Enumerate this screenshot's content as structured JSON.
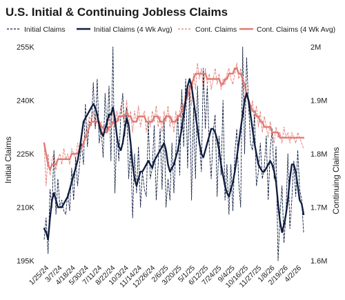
{
  "chart_data": {
    "type": "line",
    "title": "U.S. Initial & Continuing Jobless Claims",
    "ylabel": "Initial Claims",
    "y2label": "Continuing Claims",
    "ylim": [
      195,
      255
    ],
    "y2lim": [
      1.6,
      2.0
    ],
    "yticks": [
      "195K",
      "210K",
      "225K",
      "240K",
      "255K"
    ],
    "y2ticks": [
      "1.6M",
      "1.7M",
      "1.8M",
      "1.9M",
      "2M"
    ],
    "xticks": [
      "1/25/24",
      "3/7/24",
      "4/18/24",
      "5/30/24",
      "7/11/24",
      "8/22/24",
      "10/3/24",
      "11/14/24",
      "12/26/24",
      "2/6/25",
      "3/20/25",
      "5/1/25",
      "6/12/25",
      "7/24/25",
      "9/4/25",
      "10/16/25",
      "11/27/25",
      "1/8/26",
      "2/19/26",
      "4/2/26"
    ],
    "legend": [
      "Initial Claims",
      "Initial Claims (4 Wk Avg)",
      "Cont. Claims",
      "Cont. Claims (4 Wk Avg)"
    ],
    "legend_position": "top",
    "grid": false,
    "colors": {
      "initial": "#0f1d3f",
      "initial_avg": "#0f1d3f",
      "cont": "#e07a73",
      "cont_avg": "#e07a73"
    },
    "series": [
      {
        "name": "Initial Claims",
        "axis": "left",
        "values": [
          201,
          207,
          197,
          215,
          210,
          226,
          208,
          218,
          210,
          212,
          209,
          208,
          214,
          209,
          221,
          212,
          224,
          216,
          222,
          228,
          222,
          239,
          227,
          234,
          233,
          245,
          232,
          246,
          228,
          232,
          224,
          242,
          231,
          244,
          223,
          255,
          214,
          231,
          223,
          236,
          242,
          230,
          238,
          218,
          227,
          207,
          225,
          214,
          227,
          210,
          220,
          215,
          213,
          234,
          218,
          221,
          233,
          212,
          222,
          232,
          215,
          235,
          210,
          218,
          212,
          228,
          214,
          226,
          236,
          219,
          243,
          227,
          246,
          221,
          244,
          212,
          238,
          218,
          244,
          228,
          220,
          249,
          232,
          244,
          227,
          218,
          231,
          236,
          213,
          230,
          219,
          240,
          212,
          222,
          208,
          222,
          209,
          225,
          232,
          217,
          210,
          255,
          225,
          252,
          239,
          228,
          226,
          236,
          216,
          220,
          228,
          218,
          221,
          230,
          212,
          226,
          232,
          218,
          227,
          195,
          208,
          216,
          200,
          208,
          225,
          204,
          212,
          223,
          213,
          226,
          215,
          212,
          203
        ]
      },
      {
        "name": "Initial Claims (4 Wk Avg)",
        "axis": "left",
        "values": [
          204,
          203,
          201,
          207,
          212,
          214,
          212,
          210,
          210,
          210,
          211,
          212,
          213,
          215,
          217,
          219,
          221,
          223,
          226,
          230,
          234,
          235,
          236,
          237,
          238,
          239,
          238,
          236,
          233,
          231,
          230,
          232,
          234,
          236,
          236,
          238,
          235,
          230,
          227,
          226,
          228,
          232,
          235,
          233,
          228,
          222,
          218,
          216,
          218,
          220,
          220,
          221,
          222,
          223,
          222,
          221,
          223,
          224,
          225,
          226,
          227,
          228,
          226,
          222,
          220,
          221,
          222,
          224,
          226,
          229,
          232,
          236,
          240,
          244,
          246,
          244,
          240,
          236,
          232,
          228,
          225,
          224,
          226,
          228,
          230,
          232,
          232,
          231,
          229,
          226,
          222,
          219,
          216,
          214,
          213,
          215,
          217,
          220,
          224,
          228,
          232,
          236,
          240,
          242,
          240,
          236,
          232,
          228,
          225,
          222,
          221,
          220,
          220,
          221,
          222,
          223,
          222,
          220,
          217,
          211,
          206,
          203,
          205,
          208,
          212,
          218,
          222,
          222,
          220,
          216,
          212,
          211,
          208
        ]
      },
      {
        "name": "Cont. Claims",
        "axis": "right",
        "values": [
          1.82,
          1.74,
          1.8,
          1.76,
          1.79,
          1.8,
          1.77,
          1.79,
          1.8,
          1.78,
          1.81,
          1.79,
          1.8,
          1.78,
          1.81,
          1.8,
          1.79,
          1.82,
          1.81,
          1.83,
          1.82,
          1.84,
          1.85,
          1.87,
          1.86,
          1.88,
          1.85,
          1.87,
          1.84,
          1.86,
          1.83,
          1.85,
          1.84,
          1.87,
          1.86,
          1.88,
          1.85,
          1.88,
          1.86,
          1.89,
          1.87,
          1.86,
          1.9,
          1.85,
          1.88,
          1.84,
          1.88,
          1.86,
          1.89,
          1.85,
          1.87,
          1.88,
          1.84,
          1.87,
          1.85,
          1.88,
          1.86,
          1.89,
          1.85,
          1.87,
          1.84,
          1.88,
          1.86,
          1.89,
          1.85,
          1.87,
          1.84,
          1.88,
          1.86,
          1.88,
          1.9,
          1.88,
          1.92,
          1.9,
          1.93,
          1.89,
          1.95,
          1.92,
          1.97,
          1.94,
          1.96,
          1.92,
          1.96,
          1.93,
          1.95,
          1.92,
          1.94,
          1.96,
          1.93,
          1.95,
          1.92,
          1.94,
          1.93,
          1.95,
          1.96,
          1.94,
          1.93,
          1.95,
          1.97,
          1.94,
          1.96,
          1.93,
          1.9,
          1.92,
          1.89,
          1.87,
          1.9,
          1.86,
          1.89,
          1.85,
          1.88,
          1.84,
          1.87,
          1.85,
          1.83,
          1.86,
          1.84,
          1.82,
          1.85,
          1.83,
          1.84,
          1.82,
          1.85,
          1.83,
          1.84,
          1.82,
          1.84,
          1.83,
          1.82,
          1.84,
          1.83,
          1.82,
          1.81
        ]
      },
      {
        "name": "Cont. Claims (4 Wk Avg)",
        "axis": "right",
        "values": [
          1.82,
          1.8,
          1.78,
          1.77,
          1.78,
          1.78,
          1.78,
          1.79,
          1.79,
          1.79,
          1.79,
          1.79,
          1.79,
          1.79,
          1.8,
          1.8,
          1.8,
          1.8,
          1.81,
          1.81,
          1.82,
          1.83,
          1.84,
          1.85,
          1.86,
          1.86,
          1.86,
          1.86,
          1.86,
          1.85,
          1.85,
          1.84,
          1.84,
          1.85,
          1.85,
          1.86,
          1.86,
          1.86,
          1.87,
          1.87,
          1.87,
          1.87,
          1.88,
          1.87,
          1.87,
          1.86,
          1.86,
          1.86,
          1.87,
          1.87,
          1.87,
          1.87,
          1.86,
          1.86,
          1.86,
          1.86,
          1.87,
          1.87,
          1.87,
          1.86,
          1.86,
          1.86,
          1.87,
          1.87,
          1.87,
          1.86,
          1.86,
          1.86,
          1.87,
          1.87,
          1.88,
          1.89,
          1.9,
          1.91,
          1.92,
          1.93,
          1.94,
          1.95,
          1.95,
          1.95,
          1.95,
          1.95,
          1.95,
          1.94,
          1.94,
          1.94,
          1.94,
          1.94,
          1.94,
          1.94,
          1.93,
          1.93,
          1.94,
          1.94,
          1.95,
          1.95,
          1.95,
          1.96,
          1.96,
          1.95,
          1.95,
          1.94,
          1.93,
          1.91,
          1.9,
          1.89,
          1.88,
          1.88,
          1.87,
          1.87,
          1.86,
          1.86,
          1.85,
          1.85,
          1.85,
          1.85,
          1.84,
          1.84,
          1.84,
          1.84,
          1.83,
          1.83,
          1.83,
          1.83,
          1.83,
          1.83,
          1.83,
          1.83,
          1.83,
          1.83,
          1.83,
          1.83,
          1.83
        ]
      }
    ]
  }
}
